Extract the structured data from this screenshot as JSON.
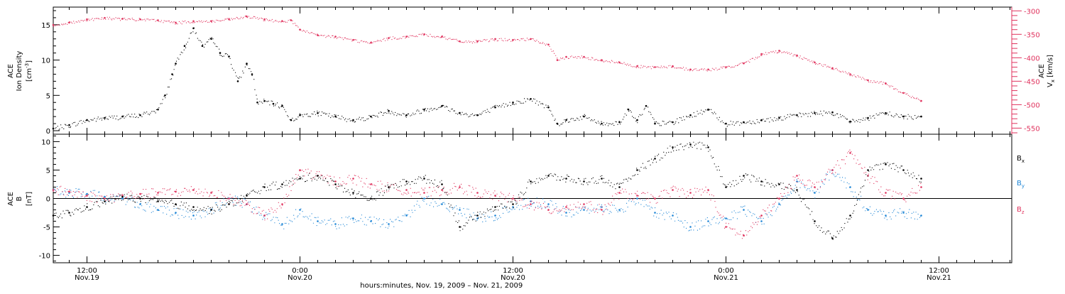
{
  "colors": {
    "axis": "#000000",
    "density": "#000000",
    "speed": "#e0325d",
    "bx": "#000000",
    "by": "#1f86d6",
    "bz": "#e0325d"
  },
  "x_axis": {
    "label": "hours:minutes, Nov. 19, 2009 – Nov. 21, 2009",
    "ticks": [
      {
        "time": "12:00",
        "date": "Nov.19",
        "hours": 12
      },
      {
        "time": "0:00",
        "date": "Nov.20",
        "hours": 24
      },
      {
        "time": "12:00",
        "date": "Nov.20",
        "hours": 36
      },
      {
        "time": "0:00",
        "date": "Nov.21",
        "hours": 48
      },
      {
        "time": "12:00",
        "date": "Nov.21",
        "hours": 60
      }
    ]
  },
  "chart_data": [
    {
      "type": "line",
      "panel": "top",
      "x_unit": "hours since Nov.19 0:00",
      "xlim": [
        10.1,
        64.1
      ],
      "left_axis": {
        "label_lines": [
          "ACE",
          "Ion Density"
        ],
        "unit": "[cm",
        "unit_sup": "-3",
        "unit_end": "]",
        "ylim": [
          -0.5,
          17.5
        ],
        "ticks": [
          0,
          5,
          10,
          15
        ]
      },
      "right_axis": {
        "label_lines": [
          "ACE"
        ],
        "var": "V",
        "var_sub": "x",
        "unit": "[km/s]",
        "ylim": [
          -563,
          -292
        ],
        "ticks": [
          -300,
          -350,
          -400,
          -450,
          -500,
          -550
        ]
      },
      "series": [
        {
          "key": "density",
          "axis": "left",
          "x": [
            10.1,
            11.0,
            12.0,
            13.0,
            14.0,
            15.0,
            16.0,
            16.4,
            16.8,
            17.0,
            17.5,
            18.0,
            18.5,
            19.0,
            19.5,
            20.0,
            20.5,
            21.0,
            21.3,
            21.6,
            22.0,
            22.5,
            23.0,
            23.5,
            24.0,
            25.0,
            26.0,
            27.0,
            28.0,
            29.0,
            30.0,
            31.0,
            32.0,
            33.0,
            34.0,
            35.0,
            36.0,
            37.0,
            38.0,
            38.5,
            39.0,
            40.0,
            41.0,
            42.0,
            42.5,
            43.0,
            43.5,
            44.0,
            45.0,
            46.0,
            47.0,
            48.0,
            49.0,
            50.0,
            51.0,
            52.0,
            53.0,
            54.0,
            55.0,
            56.0,
            57.0,
            58.0,
            59.0
          ],
          "y": [
            0.3,
            0.8,
            1.5,
            1.8,
            2.0,
            2.2,
            3.0,
            5.0,
            8.0,
            9.5,
            12.0,
            14.5,
            12.0,
            13.0,
            11.0,
            10.5,
            7.0,
            9.5,
            8.0,
            4.0,
            4.2,
            3.8,
            3.5,
            1.5,
            2.2,
            2.5,
            2.0,
            1.5,
            2.0,
            2.8,
            2.2,
            3.0,
            3.5,
            2.5,
            2.2,
            3.3,
            4.0,
            4.5,
            3.3,
            1.0,
            1.5,
            2.0,
            1.0,
            1.2,
            3.0,
            1.5,
            3.5,
            1.0,
            1.2,
            2.2,
            3.0,
            1.0,
            1.2,
            1.5,
            1.8,
            2.2,
            2.5,
            2.6,
            1.3,
            1.8,
            2.5,
            2.0,
            2.0
          ]
        },
        {
          "key": "speed",
          "axis": "right",
          "x": [
            10.1,
            11.0,
            12.0,
            13.0,
            14.0,
            15.0,
            16.0,
            17.0,
            18.0,
            19.0,
            20.0,
            21.0,
            22.0,
            23.0,
            23.5,
            24.0,
            25.0,
            26.0,
            27.0,
            28.0,
            29.0,
            30.0,
            31.0,
            32.0,
            33.0,
            34.0,
            35.0,
            36.0,
            37.0,
            38.0,
            38.5,
            39.0,
            40.0,
            41.0,
            42.0,
            43.0,
            44.0,
            45.0,
            46.0,
            47.0,
            48.0,
            49.0,
            50.0,
            51.0,
            52.0,
            53.0,
            54.0,
            55.0,
            56.0,
            57.0,
            58.0,
            59.0
          ],
          "y": [
            -330,
            -325,
            -318,
            -315,
            -317,
            -318,
            -320,
            -325,
            -322,
            -322,
            -318,
            -312,
            -318,
            -322,
            -320,
            -340,
            -352,
            -355,
            -362,
            -368,
            -358,
            -355,
            -350,
            -355,
            -365,
            -365,
            -360,
            -362,
            -360,
            -372,
            -405,
            -398,
            -398,
            -405,
            -410,
            -418,
            -420,
            -418,
            -425,
            -425,
            -420,
            -412,
            -392,
            -385,
            -395,
            -410,
            -422,
            -435,
            -448,
            -455,
            -475,
            -492
          ]
        }
      ]
    },
    {
      "type": "line",
      "panel": "bottom",
      "x_unit": "hours since Nov.19 0:00",
      "xlim": [
        10.1,
        64.1
      ],
      "left_axis": {
        "label_lines": [
          "ACE"
        ],
        "var": "B",
        "unit": "[nT]",
        "ylim": [
          -11.3,
          11.3
        ],
        "ticks": [
          10,
          5,
          0,
          -5,
          -10
        ],
        "zero_line": true
      },
      "series": [
        {
          "key": "bx",
          "name": "B",
          "name_sub": "x",
          "x": [
            10.1,
            11.0,
            12.0,
            13.0,
            14.0,
            15.0,
            16.0,
            17.0,
            18.0,
            19.0,
            20.0,
            21.0,
            22.0,
            23.0,
            24.0,
            25.0,
            26.0,
            27.0,
            28.0,
            29.0,
            30.0,
            31.0,
            32.0,
            33.0,
            34.0,
            35.0,
            36.0,
            37.0,
            38.0,
            39.0,
            40.0,
            41.0,
            42.0,
            43.0,
            44.0,
            45.0,
            46.0,
            47.0,
            48.0,
            49.0,
            50.0,
            51.0,
            52.0,
            53.0,
            54.0,
            55.0,
            56.0,
            57.0,
            58.0,
            59.0
          ],
          "y": [
            -3.0,
            -2.5,
            -1.5,
            -0.5,
            0.3,
            0.0,
            -0.5,
            -1.0,
            -1.5,
            -2.0,
            -1.0,
            0.5,
            2.0,
            2.5,
            3.5,
            4.0,
            2.5,
            1.0,
            0.0,
            2.0,
            3.0,
            3.5,
            2.5,
            -5.0,
            -3.0,
            -1.5,
            -1.0,
            3.0,
            4.0,
            3.5,
            3.0,
            3.5,
            2.0,
            5.0,
            7.0,
            9.0,
            9.5,
            9.0,
            2.0,
            4.0,
            3.0,
            2.5,
            1.5,
            -4.0,
            -7.0,
            -3.0,
            5.0,
            6.0,
            5.0,
            3.5
          ]
        },
        {
          "key": "by",
          "name": "B",
          "name_sub": "y",
          "x": [
            10.1,
            11.0,
            12.0,
            13.0,
            14.0,
            15.0,
            16.0,
            17.0,
            18.0,
            19.0,
            20.0,
            21.0,
            22.0,
            23.0,
            24.0,
            25.0,
            26.0,
            27.0,
            28.0,
            29.0,
            30.0,
            31.0,
            32.0,
            33.0,
            34.0,
            35.0,
            36.0,
            37.0,
            38.0,
            39.0,
            40.0,
            41.0,
            42.0,
            43.0,
            44.0,
            45.0,
            46.0,
            47.0,
            48.0,
            49.0,
            50.0,
            51.0,
            52.0,
            53.0,
            54.0,
            55.0,
            56.0,
            57.0,
            58.0,
            59.0
          ],
          "y": [
            1.5,
            1.0,
            0.8,
            0.3,
            0.0,
            -1.0,
            -2.0,
            -2.5,
            -3.0,
            -2.0,
            0.0,
            -1.0,
            -3.0,
            -4.5,
            -2.0,
            -4.0,
            -4.5,
            -3.5,
            -4.0,
            -4.5,
            -3.0,
            0.0,
            -1.0,
            -2.0,
            -3.5,
            -3.0,
            -1.5,
            -0.5,
            -1.0,
            -2.5,
            -2.0,
            -1.5,
            -2.0,
            0.0,
            -2.5,
            -3.0,
            -5.0,
            -4.0,
            -3.5,
            -2.0,
            -4.0,
            -1.0,
            3.0,
            1.0,
            5.0,
            2.0,
            -2.0,
            -3.0,
            -2.5,
            -3.0
          ]
        },
        {
          "key": "bz",
          "name": "B",
          "name_sub": "z",
          "x": [
            10.1,
            11.0,
            12.0,
            13.0,
            14.0,
            15.0,
            16.0,
            17.0,
            18.0,
            19.0,
            20.0,
            21.0,
            22.0,
            23.0,
            24.0,
            25.0,
            26.0,
            27.0,
            28.0,
            29.0,
            30.0,
            31.0,
            32.0,
            33.0,
            34.0,
            35.0,
            36.0,
            37.0,
            38.0,
            39.0,
            40.0,
            41.0,
            42.0,
            43.0,
            44.0,
            45.0,
            46.0,
            47.0,
            48.0,
            49.0,
            50.0,
            51.0,
            52.0,
            53.0,
            54.0,
            55.0,
            56.0,
            57.0,
            58.0,
            59.0
          ],
          "y": [
            1.5,
            1.2,
            0.5,
            0.0,
            0.5,
            0.8,
            1.0,
            1.2,
            1.5,
            1.0,
            0.0,
            -1.0,
            -3.0,
            -1.0,
            5.0,
            4.0,
            3.0,
            3.5,
            2.5,
            2.0,
            1.5,
            1.0,
            1.5,
            2.0,
            1.0,
            0.5,
            0.0,
            -1.0,
            -2.0,
            -1.5,
            -1.0,
            -2.0,
            1.0,
            0.5,
            0.0,
            1.5,
            1.0,
            1.5,
            -5.0,
            -6.5,
            -3.0,
            0.0,
            4.0,
            2.0,
            5.0,
            8.0,
            4.0,
            1.0,
            0.0,
            2.0
          ]
        }
      ]
    }
  ]
}
